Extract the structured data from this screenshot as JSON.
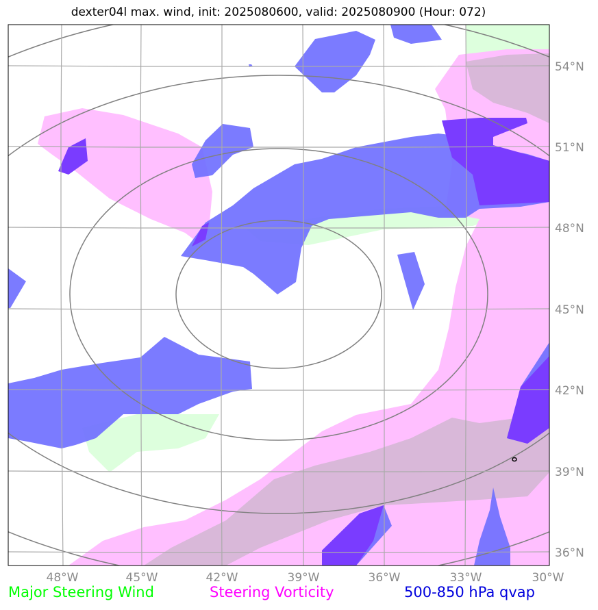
{
  "title": "dexter04l max. wind, init: 2025080600, valid: 2025080900 (Hour: 072)",
  "map": {
    "lon_range": [
      -50,
      -30
    ],
    "lat_range": [
      35.5,
      55.5
    ],
    "lon_ticks": [
      "48°W",
      "45°W",
      "42°W",
      "39°W",
      "36°W",
      "33°W",
      "30°W"
    ],
    "lat_ticks": [
      "54°N",
      "51°N",
      "48°N",
      "45°N",
      "42°N",
      "39°N",
      "36°N"
    ],
    "gridlines": true
  },
  "layers": [
    {
      "name": "Major Steering Wind",
      "color": "#ddffdd"
    },
    {
      "name": "Steering Vorticity",
      "color": "#ffbfff"
    },
    {
      "name": "500-850 hPa qvap",
      "color": "#7070ff"
    }
  ],
  "legend": {
    "wind": "Major Steering Wind",
    "vorticity": "Steering Vorticity",
    "qvap": "500-850 hPa qvap"
  }
}
